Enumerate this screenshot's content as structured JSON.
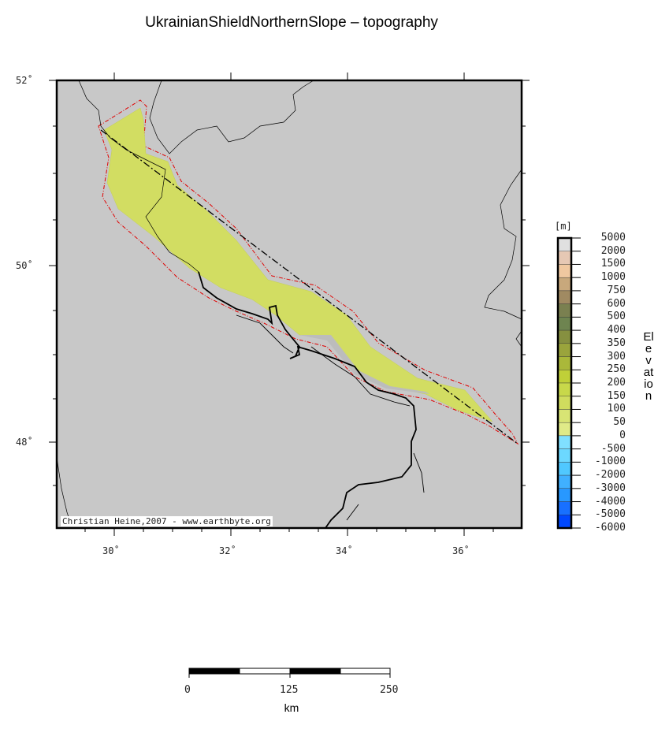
{
  "title": "UkrainianShieldNorthernSlope – topography",
  "credit": "Christian Heine,2007 - www.earthbyte.org",
  "map": {
    "lat_labels": [
      "52˚",
      "50˚",
      "48˚"
    ],
    "lon_labels": [
      "30˚",
      "32˚",
      "34˚",
      "36˚"
    ],
    "background_color": "#c8c8c8",
    "region_fill_color": "#d2dd62",
    "outline_color": "#e00000"
  },
  "colorbar": {
    "unit": "[m]",
    "label": "Elevation",
    "ticks": [
      "5000",
      "2000",
      "1500",
      "1000",
      "750",
      "600",
      "500",
      "400",
      "350",
      "300",
      "250",
      "200",
      "150",
      "100",
      "50",
      "0",
      "-500",
      "-1000",
      "-2000",
      "-3000",
      "-4000",
      "-5000",
      "-6000"
    ],
    "colors": [
      "#e0e0e0",
      "#e6c8b4",
      "#f0c8a0",
      "#c8a87c",
      "#a08a62",
      "#7a8050",
      "#6e8450",
      "#869040",
      "#9aa43c",
      "#aab83a",
      "#c0d038",
      "#c8d84a",
      "#d0dc5e",
      "#d8e474",
      "#e0ea88",
      "#80e0ff",
      "#6cd8ff",
      "#50c8ff",
      "#40b0ff",
      "#2898ff",
      "#1870ff",
      "#0048ff"
    ]
  },
  "scalebar": {
    "labels": [
      "0",
      "125",
      "250"
    ],
    "unit": "km"
  }
}
